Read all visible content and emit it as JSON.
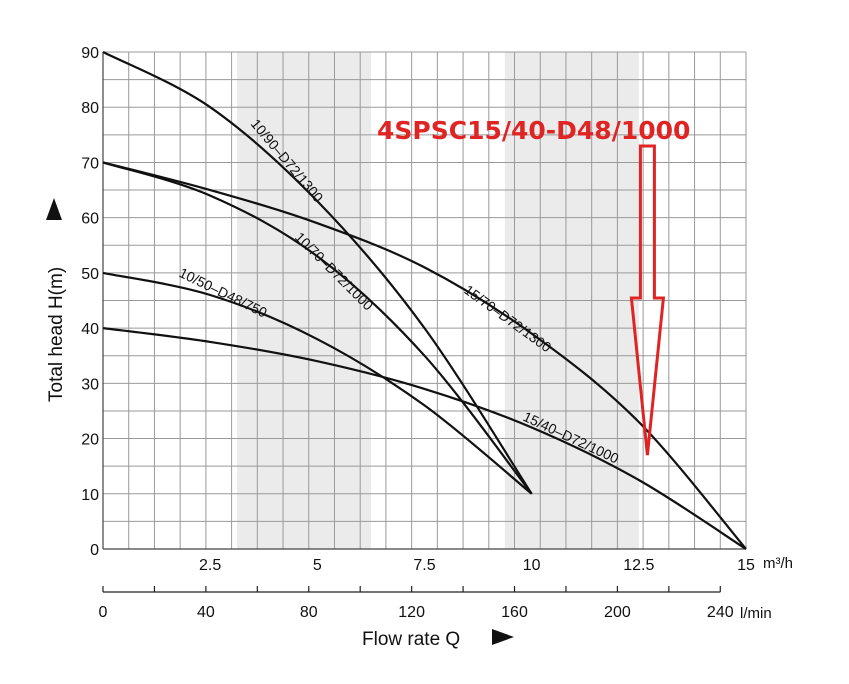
{
  "chart_data": {
    "type": "line",
    "xlabel": "Flow rate Q",
    "ylabel": "Total head H(m)",
    "x_unit_primary": "m³/h",
    "x_unit_secondary": "l/min",
    "xlim": [
      0,
      15
    ],
    "ylim": [
      0,
      90
    ],
    "x_ticks": [
      "2.5",
      "5",
      "7.5",
      "10",
      "12.5",
      "15"
    ],
    "x_ticks_values": [
      2.5,
      5,
      7.5,
      10,
      12.5,
      15
    ],
    "x2_ticks": [
      "0",
      "40",
      "80",
      "120",
      "160",
      "200",
      "240"
    ],
    "x2_ticks_values": [
      0,
      40,
      80,
      120,
      160,
      200,
      240
    ],
    "y_ticks": [
      "0",
      "10",
      "20",
      "30",
      "40",
      "50",
      "60",
      "70",
      "80",
      "90"
    ],
    "y_ticks_values": [
      0,
      10,
      20,
      30,
      40,
      50,
      60,
      70,
      80,
      90
    ],
    "grid": true,
    "shaded_x_ranges": [
      [
        3.125,
        6.25
      ],
      [
        9.375,
        12.5
      ]
    ],
    "series": [
      {
        "name": "10/90–D72/1300",
        "x": [
          0,
          2.5,
          5,
          7.5,
          10
        ],
        "y": [
          90,
          80,
          63,
          40,
          10
        ]
      },
      {
        "name": "10/70–D72/1000",
        "x": [
          0,
          2.5,
          5,
          7.5,
          10
        ],
        "y": [
          70,
          64,
          53,
          35,
          10
        ]
      },
      {
        "name": "10/50–D48/750",
        "x": [
          0,
          2.5,
          5,
          7.5,
          10
        ],
        "y": [
          50,
          46,
          38,
          26,
          10
        ]
      },
      {
        "name": "15/70–D72/1300",
        "x": [
          0,
          2.5,
          5,
          7.5,
          10,
          12.5,
          15
        ],
        "y": [
          70,
          65,
          59,
          51,
          39,
          23,
          0
        ]
      },
      {
        "name": "15/40–D72/1000",
        "x": [
          0,
          2.5,
          5,
          7.5,
          10,
          12.5,
          15
        ],
        "y": [
          40,
          37.5,
          34,
          29,
          22,
          12.5,
          0
        ]
      }
    ],
    "annotation": {
      "text": "4SPSC15/40-D48/1000",
      "color": "#e02424",
      "arrow_x": 12.7,
      "arrow_tip_y": 17
    }
  }
}
